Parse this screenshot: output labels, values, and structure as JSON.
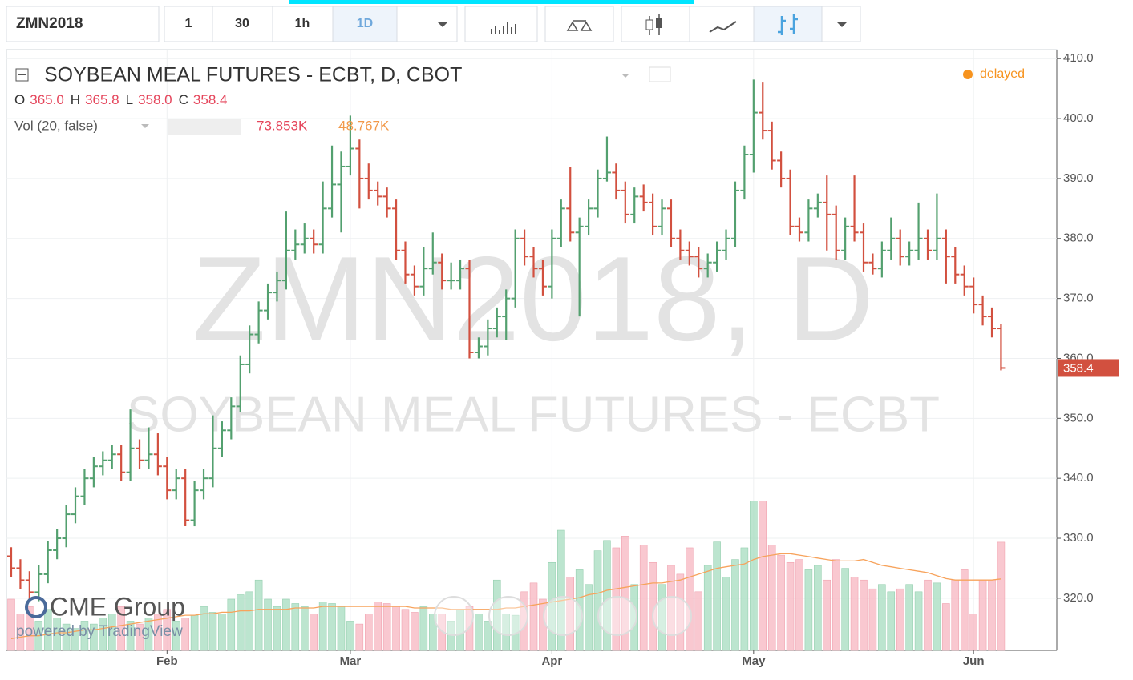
{
  "toolbar": {
    "symbol": "ZMN2018",
    "intervals": [
      "1",
      "30",
      "1h",
      "1D"
    ]
  },
  "chart_data": {
    "type": "ohlc",
    "title": "SOYBEAN MEAL FUTURES - ECBT, D, CBOT",
    "ohlc_legend": [
      {
        "label": "O",
        "value": "365.0"
      },
      {
        "label": "H",
        "value": "365.8"
      },
      {
        "label": "L",
        "value": "358.0"
      },
      {
        "label": "C",
        "value": "358.4"
      }
    ],
    "volume_legend": {
      "label": "Vol (20, false)",
      "volume": "73.853K",
      "average": "48.767K"
    },
    "status": "delayed",
    "watermark": [
      "ZMN2018, D",
      "SOYBEAN MEAL FUTURES - ECBT"
    ],
    "branding": [
      "CME Group",
      "powered by TradingView"
    ],
    "up_color": "#53a06f",
    "down_color": "#d2503f",
    "ylim": [
      311.3,
      411.5
    ],
    "yticks": [
      {
        "value": 320,
        "label": "320.0"
      },
      {
        "value": 330,
        "label": "330.0"
      },
      {
        "value": 340,
        "label": "340.0"
      },
      {
        "value": 350,
        "label": "350.0"
      },
      {
        "value": 360,
        "label": "360.0"
      },
      {
        "value": 370,
        "label": "370.0"
      },
      {
        "value": 380,
        "label": "380.0"
      },
      {
        "value": 390,
        "label": "390.0"
      },
      {
        "value": 400,
        "label": "400.0"
      },
      {
        "value": 410,
        "label": "410.0"
      }
    ],
    "xticks": [
      {
        "value": 17,
        "label": "Feb"
      },
      {
        "value": 37,
        "label": "Mar"
      },
      {
        "value": 59,
        "label": "Apr"
      },
      {
        "value": 81,
        "label": "May"
      },
      {
        "value": 105,
        "label": "Jun"
      }
    ],
    "y2lim": [
      0,
      410
    ],
    "ohlc": [
      [
        327,
        328.5,
        323.5,
        325
      ],
      [
        325,
        326.5,
        321.5,
        323
      ],
      [
        323,
        324.5,
        319.5,
        321
      ],
      [
        321,
        325.5,
        319.5,
        324
      ],
      [
        324,
        329.5,
        322.5,
        328
      ],
      [
        328,
        331.5,
        326.5,
        330
      ],
      [
        330,
        335.5,
        328.5,
        334
      ],
      [
        334,
        338.5,
        332.5,
        337
      ],
      [
        337,
        341.5,
        335.5,
        340
      ],
      [
        340,
        343.5,
        338.5,
        342
      ],
      [
        342,
        344.5,
        340.5,
        343
      ],
      [
        343,
        345.5,
        341.5,
        344
      ],
      [
        344,
        345.5,
        339.5,
        341
      ],
      [
        341,
        351.5,
        339.5,
        345
      ],
      [
        345,
        346.5,
        341.5,
        343
      ],
      [
        343,
        348.5,
        341.5,
        344
      ],
      [
        344,
        347.5,
        340.5,
        342
      ],
      [
        342,
        343.5,
        336.5,
        338
      ],
      [
        338,
        341.5,
        336.5,
        340
      ],
      [
        340,
        341.5,
        332,
        333
      ],
      [
        333,
        339.5,
        332,
        338
      ],
      [
        338,
        341.5,
        336.5,
        340
      ],
      [
        340,
        350.5,
        338.5,
        345
      ],
      [
        345,
        349.5,
        343.5,
        348
      ],
      [
        348,
        353.5,
        346.5,
        352
      ],
      [
        352,
        360.5,
        351,
        359
      ],
      [
        359,
        365.5,
        357.5,
        364
      ],
      [
        364,
        369.5,
        362.5,
        368
      ],
      [
        368,
        372.5,
        366.5,
        371
      ],
      [
        371,
        374.5,
        369.5,
        373
      ],
      [
        373,
        384.5,
        371.5,
        378
      ],
      [
        378,
        381.5,
        376.5,
        379
      ],
      [
        379,
        382.5,
        377.5,
        380
      ],
      [
        380,
        381.5,
        377.5,
        379
      ],
      [
        379,
        389.5,
        377.5,
        385
      ],
      [
        385,
        395.5,
        383.5,
        389
      ],
      [
        389,
        394.5,
        381,
        392
      ],
      [
        392,
        400.5,
        390.5,
        395
      ],
      [
        395,
        396.5,
        385,
        390
      ],
      [
        390,
        392.5,
        386.5,
        388
      ],
      [
        388,
        389.5,
        385.5,
        387
      ],
      [
        387,
        388.5,
        383.5,
        385
      ],
      [
        385,
        386.5,
        376.5,
        378
      ],
      [
        378,
        379.5,
        372.5,
        374
      ],
      [
        374,
        375.5,
        370.5,
        372
      ],
      [
        372,
        378.5,
        370.5,
        375
      ],
      [
        375,
        381,
        374,
        376
      ],
      [
        376,
        377.5,
        371.5,
        373
      ],
      [
        373,
        376,
        371.5,
        373
      ],
      [
        373,
        376.5,
        371.5,
        375
      ],
      [
        375,
        376.5,
        360,
        361
      ],
      [
        361,
        363.5,
        360,
        362
      ],
      [
        362,
        366.5,
        360.5,
        365
      ],
      [
        365,
        368.5,
        363.5,
        367
      ],
      [
        367,
        371.5,
        363,
        370
      ],
      [
        370,
        381.5,
        368.5,
        380
      ],
      [
        380,
        381.5,
        375.5,
        377
      ],
      [
        377,
        378.5,
        373.5,
        375
      ],
      [
        375,
        376.5,
        370.5,
        372
      ],
      [
        372,
        381.5,
        370,
        380
      ],
      [
        380,
        386.5,
        378.5,
        385
      ],
      [
        385,
        392,
        379.5,
        381
      ],
      [
        381,
        383.5,
        367,
        382
      ],
      [
        382,
        386.5,
        380.5,
        385
      ],
      [
        385,
        391.5,
        383.5,
        390
      ],
      [
        390,
        397,
        389.5,
        391
      ],
      [
        391,
        392.5,
        386.5,
        388
      ],
      [
        388,
        389.5,
        382.5,
        384
      ],
      [
        384,
        388.5,
        382.5,
        387
      ],
      [
        387,
        389,
        384.5,
        386
      ],
      [
        386,
        387.5,
        380.5,
        382
      ],
      [
        382,
        386.5,
        380.5,
        385
      ],
      [
        385,
        386.5,
        378.5,
        380
      ],
      [
        380,
        381.5,
        376.5,
        378
      ],
      [
        378,
        379.5,
        375.5,
        377
      ],
      [
        377,
        378.5,
        373.5,
        375
      ],
      [
        375,
        377.5,
        373.5,
        376
      ],
      [
        376,
        379.5,
        374.5,
        378
      ],
      [
        378,
        381.5,
        376.5,
        380
      ],
      [
        380,
        389.5,
        378.5,
        388
      ],
      [
        388,
        395.5,
        386.5,
        394
      ],
      [
        394,
        406.5,
        391,
        401
      ],
      [
        401,
        406,
        396.5,
        398
      ],
      [
        398,
        399.5,
        391.5,
        393
      ],
      [
        393,
        394.5,
        388.5,
        390
      ],
      [
        390,
        391.5,
        380.5,
        382
      ],
      [
        382,
        383.5,
        379.5,
        381
      ],
      [
        381,
        386.5,
        379.5,
        385
      ],
      [
        385,
        387.5,
        383.5,
        386
      ],
      [
        386,
        390.5,
        378,
        384
      ],
      [
        384,
        385.5,
        376.5,
        378
      ],
      [
        378,
        383.5,
        376.5,
        382
      ],
      [
        382,
        390.5,
        379.5,
        381
      ],
      [
        381,
        382.5,
        374.5,
        376
      ],
      [
        376,
        377.5,
        374,
        375
      ],
      [
        375,
        379.5,
        373.5,
        378
      ],
      [
        378,
        383.5,
        376.5,
        380
      ],
      [
        380,
        381.5,
        375.5,
        377
      ],
      [
        377,
        379.5,
        375.5,
        378
      ],
      [
        378,
        386,
        376.5,
        380
      ],
      [
        380,
        381.5,
        376.5,
        378
      ],
      [
        378,
        387.5,
        376.5,
        380
      ],
      [
        380,
        381.5,
        372.5,
        377
      ],
      [
        377,
        378.5,
        372.5,
        374
      ],
      [
        374,
        375.5,
        370.5,
        372
      ],
      [
        372,
        373.5,
        367.5,
        369
      ],
      [
        369,
        370.5,
        365.5,
        367
      ],
      [
        367,
        368.5,
        363.5,
        365
      ],
      [
        365.0,
        365.8,
        358.0,
        358.4
      ]
    ],
    "volume": [
      35,
      25,
      30,
      20,
      28,
      22,
      18,
      15,
      20,
      18,
      22,
      25,
      30,
      20,
      18,
      22,
      25,
      28,
      20,
      22,
      24,
      30,
      26,
      25,
      35,
      38,
      40,
      48,
      35,
      30,
      35,
      32,
      30,
      25,
      33,
      32,
      30,
      20,
      18,
      25,
      33,
      32,
      30,
      28,
      26,
      30,
      25,
      25,
      20,
      28,
      30,
      25,
      20,
      48,
      25,
      24,
      40,
      46,
      35,
      60,
      82,
      50,
      55,
      45,
      68,
      75,
      70,
      78,
      45,
      72,
      60,
      45,
      58,
      52,
      70,
      40,
      58,
      74,
      50,
      62,
      70,
      102,
      102,
      72,
      65,
      60,
      62,
      55,
      58,
      48,
      62,
      56,
      50,
      48,
      42,
      45,
      40,
      42,
      45,
      40,
      48,
      46,
      32,
      48,
      55,
      25,
      48,
      48,
      73.853
    ],
    "volume_ma": [
      8,
      9,
      10,
      10,
      11,
      12,
      12,
      13,
      14,
      14,
      15,
      16,
      17,
      18,
      19,
      20,
      21,
      22,
      23,
      24,
      24,
      25,
      25,
      26,
      26,
      27,
      27,
      28,
      28,
      28,
      28,
      29,
      29,
      29,
      30,
      30,
      30,
      30,
      30,
      30,
      30,
      30,
      30,
      30,
      29,
      29,
      29,
      29,
      28,
      28,
      28,
      28,
      28,
      28,
      29,
      29,
      30,
      31,
      32,
      33,
      34,
      35,
      36,
      38,
      39,
      41,
      42,
      43,
      44,
      45,
      46,
      46,
      47,
      48,
      50,
      52,
      54,
      56,
      57,
      58,
      59,
      62,
      64,
      65,
      66,
      66,
      65,
      64,
      63,
      62,
      61,
      61,
      61,
      62,
      60,
      58,
      57,
      56,
      55,
      54,
      53,
      51,
      49,
      48,
      48,
      48,
      48,
      48,
      48.767
    ]
  }
}
